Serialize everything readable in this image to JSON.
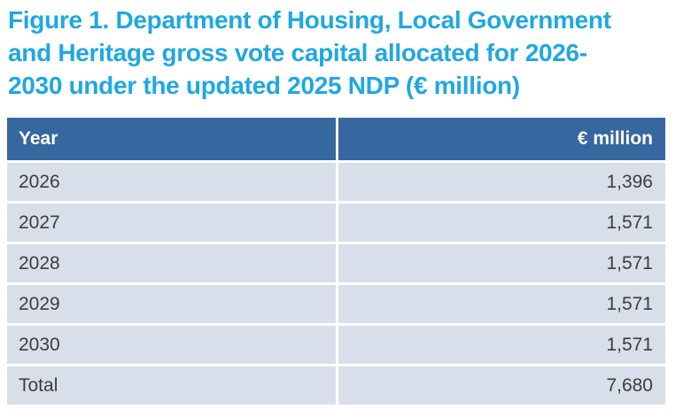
{
  "title": {
    "full_text": "Figure 1. Department of Housing, Local Government and Heritage gross vote capital allocated for 2026-2030 under the updated 2025 NDP (€ million)",
    "lines": [
      "Figure 1. Department of Housing, Local Government",
      "and Heritage gross vote capital allocated for 2026-",
      "2030 under the updated 2025 NDP (€ million)"
    ]
  },
  "colors": {
    "title_text": "#1FA8E1",
    "header_bg": "#36679E",
    "header_text": "#FFFFFF",
    "row_bg": "#D9DFEA",
    "row_text": "#3D3D3D",
    "page_bg": "#FFFFFF"
  },
  "table": {
    "columns": [
      {
        "label": "Year",
        "align": "left"
      },
      {
        "label": "€ million",
        "align": "right"
      }
    ],
    "rows": [
      {
        "year": "2026",
        "value": "1,396"
      },
      {
        "year": "2027",
        "value": "1,571"
      },
      {
        "year": "2028",
        "value": "1,571"
      },
      {
        "year": "2029",
        "value": "1,571"
      },
      {
        "year": "2030",
        "value": "1,571"
      },
      {
        "year": "Total",
        "value": "7,680"
      }
    ]
  },
  "chart_data": {
    "type": "table",
    "title": "Figure 1. Department of Housing, Local Government and Heritage gross vote capital allocated for 2026-2030 under the updated 2025 NDP (€ million)",
    "columns": [
      "Year",
      "€ million"
    ],
    "categories": [
      "2026",
      "2027",
      "2028",
      "2029",
      "2030",
      "Total"
    ],
    "values": [
      1396,
      1571,
      1571,
      1571,
      1571,
      7680
    ]
  }
}
